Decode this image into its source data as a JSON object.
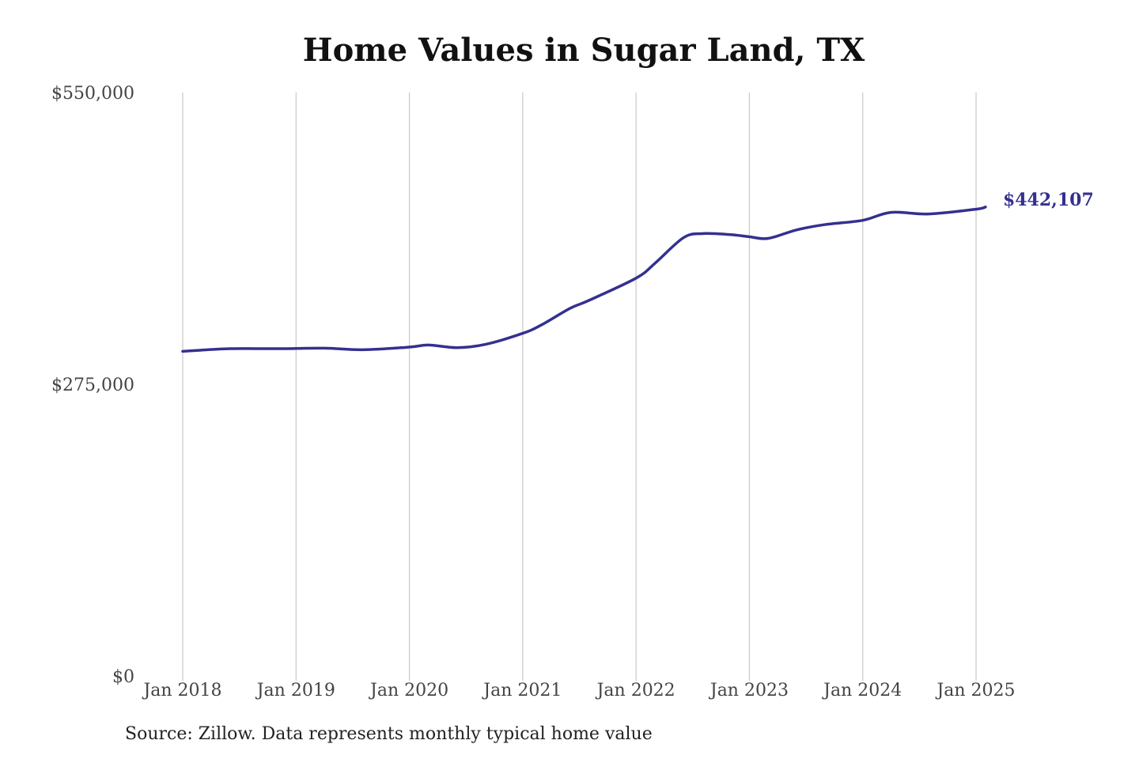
{
  "source_note": "Source: Zillow. Data represents monthly typical home value",
  "chart_data": {
    "type": "line",
    "title": "Home Values in Sugar Land, TX",
    "xlabel": "",
    "ylabel": "",
    "ylim": [
      0,
      550000
    ],
    "y_ticks": [
      0,
      275000,
      550000
    ],
    "y_tick_labels": [
      "$0",
      "$275,000",
      "$550,000"
    ],
    "xlim": [
      "2018-01",
      "2025-02"
    ],
    "x_ticks": [
      "2018-01",
      "2019-01",
      "2020-01",
      "2021-01",
      "2022-01",
      "2023-01",
      "2024-01",
      "2025-01"
    ],
    "x_tick_labels": [
      "Jan 2018",
      "Jan 2019",
      "Jan 2020",
      "Jan 2021",
      "Jan 2022",
      "Jan 2023",
      "Jan 2024",
      "Jan 2025"
    ],
    "grid": {
      "vertical": true,
      "horizontal": false
    },
    "line_color": "#343090",
    "end_label": "$442,107",
    "series": [
      {
        "x": [
          "2018-01",
          "2018-06",
          "2018-11",
          "2019-04",
          "2019-08",
          "2020-01",
          "2020-03",
          "2020-06",
          "2020-09",
          "2021-01",
          "2021-03",
          "2021-06",
          "2021-08",
          "2022-01",
          "2022-03",
          "2022-06",
          "2022-08",
          "2022-11",
          "2023-01",
          "2023-03",
          "2023-06",
          "2023-09",
          "2024-01",
          "2024-04",
          "2024-08",
          "2025-01",
          "2025-02"
        ],
        "values": [
          306000,
          308500,
          308500,
          309000,
          307500,
          310000,
          312000,
          309500,
          312500,
          323000,
          331000,
          346500,
          354000,
          375000,
          389000,
          413000,
          417000,
          416000,
          414000,
          412500,
          420500,
          425500,
          429500,
          437000,
          435500,
          440000,
          442107
        ]
      }
    ]
  }
}
